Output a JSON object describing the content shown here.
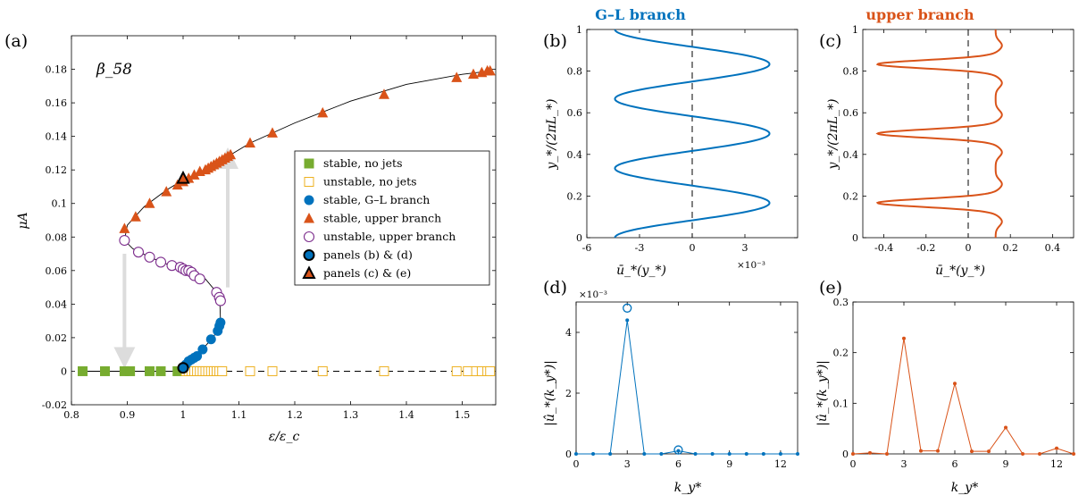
{
  "colors": {
    "green": "#77ac30",
    "yellow": "#edb120",
    "blue": "#0072bd",
    "orange": "#d95319",
    "purple": "#7e2f8e",
    "arrow": "#dcdcdc"
  },
  "panel_labels": {
    "a": "(a)",
    "b": "(b)",
    "c": "(c)",
    "d": "(d)",
    "e": "(e)"
  },
  "chart_data": [
    {
      "id": "a",
      "type": "scatter",
      "xlabel": "ε/ε_c",
      "ylabel": "μA",
      "annotation": "β_58",
      "xlim": [
        0.8,
        1.56
      ],
      "ylim": [
        -0.02,
        0.2
      ],
      "xticks": [
        "0.8",
        "0.9",
        "1",
        "1.1",
        "1.2",
        "1.3",
        "1.4",
        "1.5"
      ],
      "yticks": [
        "-0.02",
        "0",
        "0.02",
        "0.04",
        "0.06",
        "0.08",
        "0.1",
        "0.12",
        "0.14",
        "0.16",
        "0.18"
      ],
      "grid": false,
      "legend_position": "right",
      "legend": [
        "stable, no jets",
        "unstable, no jets",
        "stable, G–L branch",
        "stable, upper branch",
        "unstable, upper branch",
        "panels (b) & (d)",
        "panels (c) & (e)"
      ],
      "series": [
        {
          "name": "stable, no jets",
          "marker": "square-filled",
          "color": "green",
          "x": [
            0.82,
            0.86,
            0.895,
            0.905,
            0.94,
            0.96,
            0.99
          ],
          "y": [
            0,
            0,
            0,
            0,
            0,
            0,
            0
          ]
        },
        {
          "name": "unstable, no jets",
          "marker": "square-open",
          "color": "yellow",
          "x": [
            1.005,
            1.01,
            1.015,
            1.02,
            1.025,
            1.03,
            1.035,
            1.04,
            1.045,
            1.05,
            1.055,
            1.06,
            1.065,
            1.07,
            1.12,
            1.16,
            1.25,
            1.36,
            1.49,
            1.51,
            1.525,
            1.535,
            1.545,
            1.55
          ],
          "y": [
            0,
            0,
            0,
            0,
            0,
            0,
            0,
            0,
            0,
            0,
            0,
            0,
            0,
            0,
            0,
            0,
            0,
            0,
            0,
            0,
            0,
            0,
            0,
            0
          ]
        },
        {
          "name": "stable, G–L branch",
          "marker": "circle-filled",
          "color": "blue",
          "x": [
            1.0,
            1.005,
            1.01,
            1.015,
            1.02,
            1.025,
            1.035,
            1.05,
            1.062,
            1.065,
            1.067
          ],
          "y": [
            0.002,
            0.004,
            0.006,
            0.007,
            0.008,
            0.009,
            0.013,
            0.019,
            0.024,
            0.027,
            0.029
          ]
        },
        {
          "name": "stable, upper branch",
          "marker": "triangle-filled",
          "color": "orange",
          "x": [
            0.895,
            0.915,
            0.94,
            0.97,
            0.99,
            1.0,
            1.01,
            1.02,
            1.03,
            1.04,
            1.045,
            1.05,
            1.055,
            1.06,
            1.065,
            1.07,
            1.075,
            1.08,
            1.085,
            1.12,
            1.16,
            1.25,
            1.36,
            1.49,
            1.52,
            1.535,
            1.545,
            1.55
          ],
          "y": [
            0.085,
            0.092,
            0.1,
            0.107,
            0.111,
            0.113,
            0.115,
            0.117,
            0.119,
            0.12,
            0.121,
            0.122,
            0.123,
            0.124,
            0.125,
            0.126,
            0.127,
            0.128,
            0.129,
            0.136,
            0.142,
            0.154,
            0.165,
            0.175,
            0.177,
            0.178,
            0.179,
            0.179
          ]
        },
        {
          "name": "unstable, upper branch",
          "marker": "circle-open",
          "color": "purple",
          "x": [
            0.895,
            0.92,
            0.94,
            0.96,
            0.98,
            0.995,
            1.0,
            1.005,
            1.01,
            1.015,
            1.02,
            1.03,
            1.06,
            1.065,
            1.067
          ],
          "y": [
            0.078,
            0.071,
            0.068,
            0.065,
            0.063,
            0.062,
            0.061,
            0.06,
            0.06,
            0.059,
            0.057,
            0.055,
            0.047,
            0.044,
            0.042
          ]
        },
        {
          "name": "panels (b) & (d)",
          "marker": "circle-highlight",
          "color": "blue",
          "x": [
            1.0
          ],
          "y": [
            0.002
          ]
        },
        {
          "name": "panels (c) & (e)",
          "marker": "triangle-highlight",
          "color": "orange",
          "x": [
            1.0
          ],
          "y": [
            0.115
          ]
        }
      ],
      "branch_curve": {
        "x": [
          1.0,
          1.02,
          1.04,
          1.06,
          1.067,
          1.066,
          1.06,
          1.04,
          1.02,
          1.0,
          0.97,
          0.94,
          0.91,
          0.895,
          0.9,
          0.93,
          0.97,
          1.0,
          1.04,
          1.08,
          1.12,
          1.2,
          1.3,
          1.4,
          1.5,
          1.55
        ],
        "y": [
          0.002,
          0.008,
          0.015,
          0.023,
          0.03,
          0.04,
          0.047,
          0.055,
          0.059,
          0.061,
          0.064,
          0.068,
          0.073,
          0.078,
          0.087,
          0.098,
          0.108,
          0.114,
          0.12,
          0.128,
          0.136,
          0.148,
          0.161,
          0.171,
          0.177,
          0.179
        ]
      },
      "zero_line": {
        "solid_x": [
          0.82,
          1.0
        ],
        "dashed_x": [
          1.0,
          1.55
        ]
      },
      "arrows": [
        {
          "x": 0.895,
          "from_y": 0.07,
          "to_y": 0.008
        },
        {
          "x": 1.08,
          "from_y": 0.05,
          "to_y": 0.127
        }
      ]
    },
    {
      "id": "b",
      "type": "line",
      "title": "G–L branch",
      "xlabel": "ū_*(y_*)",
      "ylabel": "y_*/(2πL_*)",
      "x_multiplier": "×10⁻³",
      "xlim": [
        -6,
        6
      ],
      "ylim": [
        0,
        1
      ],
      "xticks": [
        "-6",
        "-3",
        "0",
        "3"
      ],
      "yticks": [
        "0",
        "0.2",
        "0.4",
        "0.6",
        "0.8",
        "1"
      ],
      "color": "blue",
      "profile": {
        "amplitude": 4.4,
        "harmonic": 3
      },
      "reference_line_x": 0
    },
    {
      "id": "c",
      "type": "line",
      "title": "upper branch",
      "xlabel": "ū_*(y_*)",
      "ylabel": "y_*/(2πL_*)",
      "xlim": [
        -0.5,
        0.5
      ],
      "ylim": [
        0,
        1
      ],
      "xticks": [
        "-0.4",
        "-0.2",
        "0",
        "0.2",
        "0.4"
      ],
      "yticks": [
        "0",
        "0.2",
        "0.4",
        "0.6",
        "0.8",
        "1"
      ],
      "color": "orange",
      "profile": {
        "baseline": 0.13,
        "dip": -0.43,
        "centers": [
          0.167,
          0.5,
          0.833
        ]
      },
      "reference_line_x": 0
    },
    {
      "id": "d",
      "type": "line",
      "xlabel": "k_y*",
      "ylabel": "|û_*(k_y*)|",
      "y_multiplier": "×10⁻³",
      "xlim": [
        0,
        13
      ],
      "ylim": [
        0,
        5
      ],
      "xticks": [
        "0",
        "3",
        "6",
        "9",
        "12"
      ],
      "yticks": [
        "0",
        "2",
        "4"
      ],
      "color": "blue",
      "x": [
        0,
        1,
        2,
        3,
        4,
        5,
        6,
        7,
        8,
        9,
        10,
        11,
        12,
        13
      ],
      "y": [
        0,
        0,
        0,
        4.4,
        0,
        0,
        0.1,
        0,
        0,
        0,
        0,
        0,
        0,
        0
      ],
      "circles": [
        {
          "x": 3,
          "y": 4.8
        },
        {
          "x": 6,
          "y": 0.13
        }
      ]
    },
    {
      "id": "e",
      "type": "line",
      "xlabel": "k_y*",
      "ylabel": "|û_*(k_y*)|",
      "xlim": [
        0,
        13
      ],
      "ylim": [
        0,
        0.3
      ],
      "xticks": [
        "0",
        "3",
        "6",
        "9",
        "12"
      ],
      "yticks": [
        "0",
        "0.1",
        "0.2",
        "0.3"
      ],
      "color": "orange",
      "x": [
        0,
        1,
        2,
        3,
        4,
        5,
        6,
        7,
        8,
        9,
        10,
        11,
        12,
        13
      ],
      "y": [
        0,
        0.002,
        0,
        0.228,
        0.006,
        0.006,
        0.139,
        0.005,
        0.005,
        0.052,
        0,
        0,
        0.011,
        0
      ]
    }
  ]
}
